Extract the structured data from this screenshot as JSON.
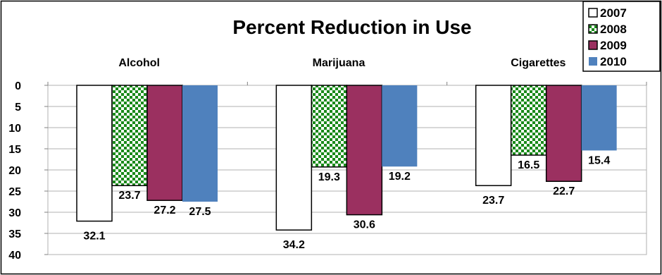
{
  "chart_data": {
    "type": "bar",
    "title": "Percent Reduction in Use",
    "categories": [
      "Alcohol",
      "Marijuana",
      "Cigarettes"
    ],
    "series": [
      {
        "name": "2007",
        "values": [
          32.1,
          34.2,
          23.7
        ]
      },
      {
        "name": "2008",
        "values": [
          23.7,
          19.3,
          16.5
        ]
      },
      {
        "name": "2009",
        "values": [
          27.2,
          30.6,
          22.7
        ]
      },
      {
        "name": "2010",
        "values": [
          27.5,
          19.2,
          15.4
        ]
      }
    ],
    "ylim": [
      0,
      40
    ],
    "y_inverted": true,
    "y_ticks": [
      "0",
      "5",
      "10",
      "15",
      "20",
      "25",
      "30",
      "35",
      "40"
    ],
    "grid": true,
    "legend_position": "top-right",
    "colors": {
      "2007": "#ffffff",
      "2008": "#1a8a1a",
      "2009": "#9b3060",
      "2010": "#4f81bd"
    },
    "patterns": {
      "2008": "checkerboard"
    }
  }
}
